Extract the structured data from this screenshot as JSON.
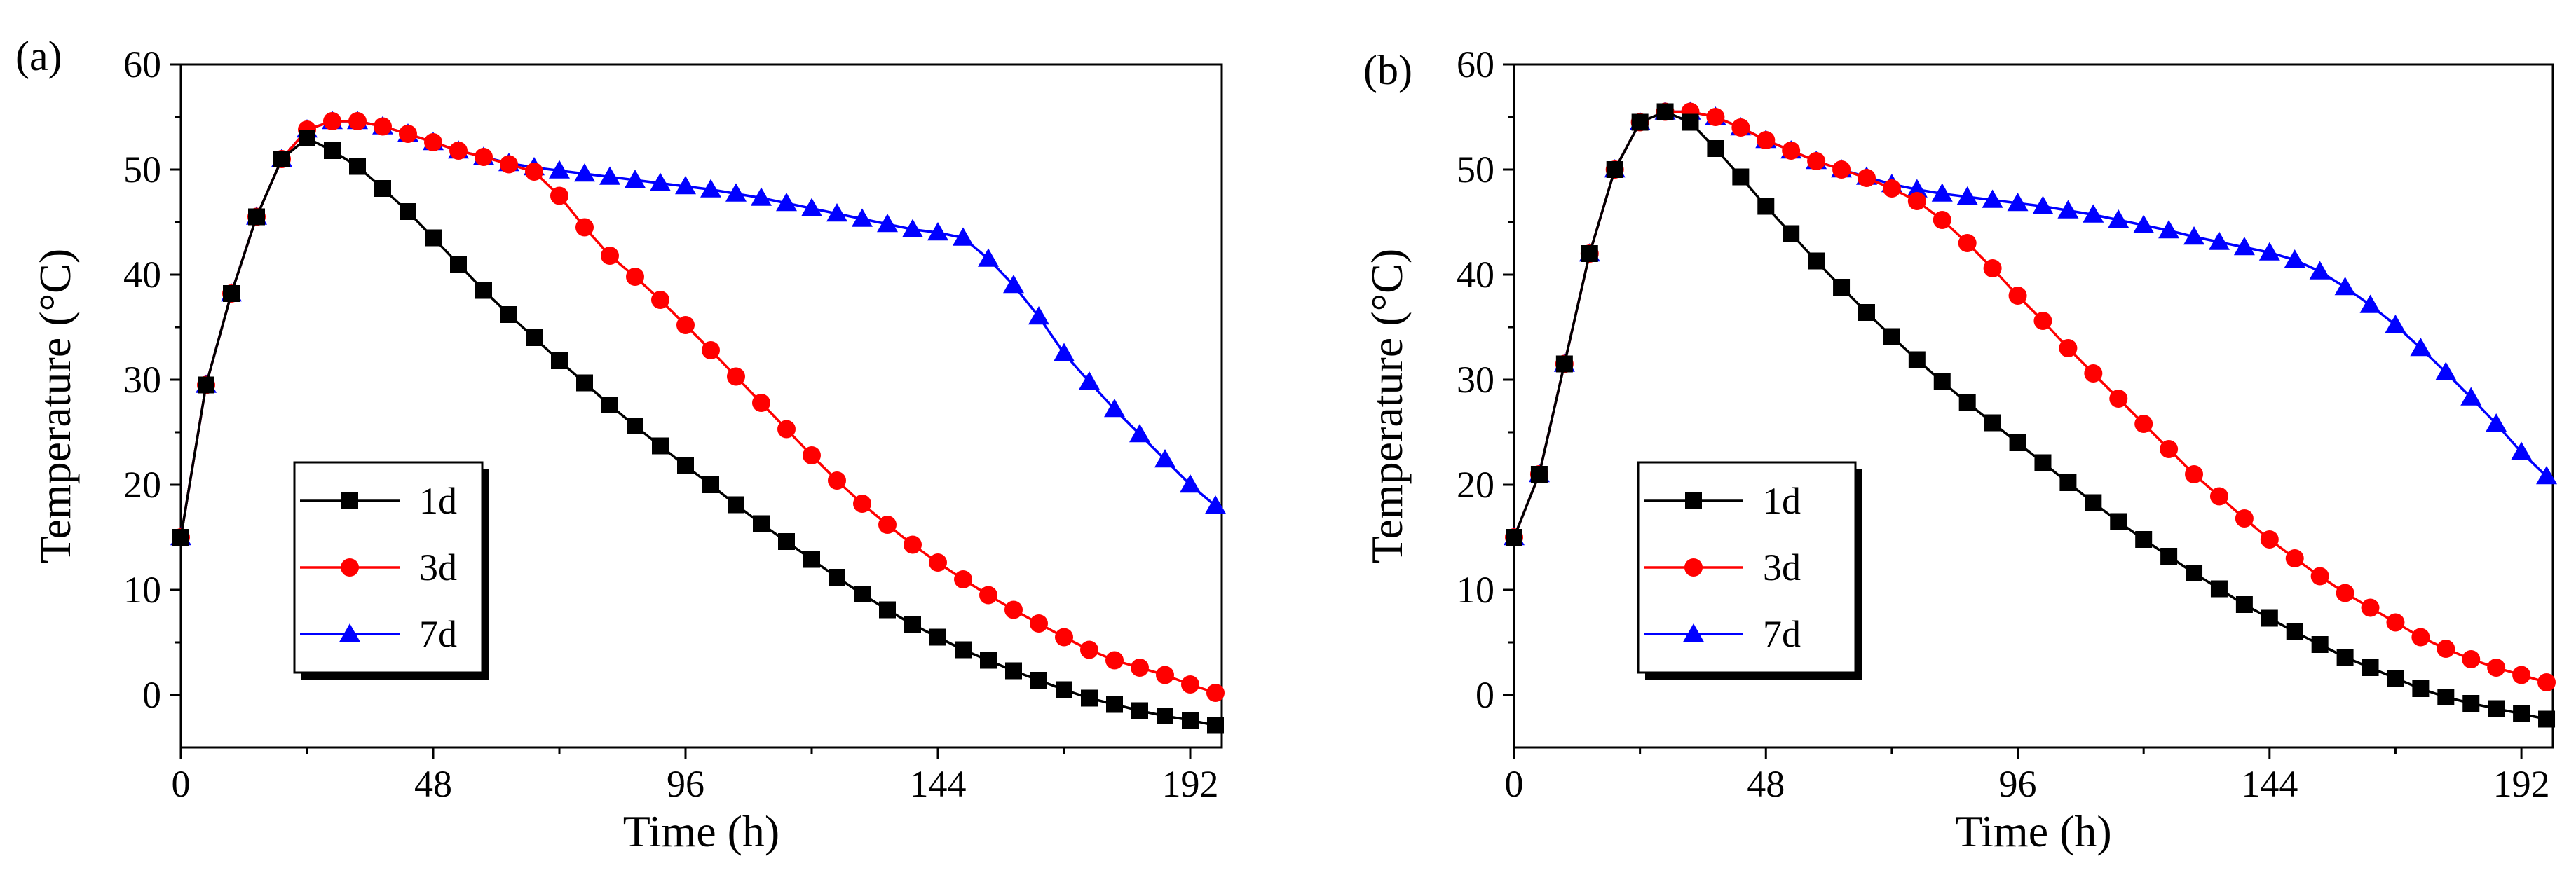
{
  "chart_data": [
    {
      "type": "line",
      "panel_label": "(a)",
      "xlabel": "Time (h)",
      "ylabel": "Temperature (°C)",
      "xlim": [
        0,
        198
      ],
      "ylim": [
        -5,
        60
      ],
      "xticks": [
        0,
        48,
        96,
        144,
        192
      ],
      "yticks": [
        0,
        10,
        20,
        30,
        40,
        50,
        60
      ],
      "legend_position": "lower-left",
      "series": [
        {
          "name": "1d",
          "color": "#000000",
          "marker": "square",
          "x": [
            0,
            4.8,
            9.6,
            14.4,
            19.2,
            24,
            28.8,
            33.6,
            38.4,
            43.2,
            48,
            52.8,
            57.6,
            62.4,
            67.2,
            72,
            76.8,
            81.6,
            86.4,
            91.2,
            96,
            100.8,
            105.6,
            110.4,
            115.2,
            120,
            124.8,
            129.6,
            134.4,
            139.2,
            144,
            148.8,
            153.6,
            158.4,
            163.2,
            168,
            172.8,
            177.6,
            182.4,
            187.2,
            192,
            196.8
          ],
          "y": [
            15,
            29.5,
            38.2,
            45.5,
            51,
            53,
            51.8,
            50.3,
            48.2,
            46,
            43.5,
            41,
            38.5,
            36.2,
            34,
            31.8,
            29.7,
            27.6,
            25.6,
            23.7,
            21.8,
            20,
            18.1,
            16.3,
            14.6,
            12.9,
            11.2,
            9.6,
            8.1,
            6.7,
            5.5,
            4.3,
            3.3,
            2.3,
            1.4,
            0.5,
            -0.3,
            -0.9,
            -1.5,
            -2,
            -2.4,
            -2.9
          ]
        },
        {
          "name": "3d",
          "color": "#ff0000",
          "marker": "circle",
          "x": [
            0,
            4.8,
            9.6,
            14.4,
            19.2,
            24,
            28.8,
            33.6,
            38.4,
            43.2,
            48,
            52.8,
            57.6,
            62.4,
            67.2,
            72,
            76.8,
            81.6,
            86.4,
            91.2,
            96,
            100.8,
            105.6,
            110.4,
            115.2,
            120,
            124.8,
            129.6,
            134.4,
            139.2,
            144,
            148.8,
            153.6,
            158.4,
            163.2,
            168,
            172.8,
            177.6,
            182.4,
            187.2,
            192,
            196.8
          ],
          "y": [
            15,
            29.5,
            38.2,
            45.5,
            51,
            53.8,
            54.6,
            54.6,
            54.1,
            53.4,
            52.6,
            51.8,
            51.2,
            50.5,
            49.8,
            47.5,
            44.5,
            41.8,
            39.8,
            37.6,
            35.2,
            32.8,
            30.3,
            27.8,
            25.3,
            22.8,
            20.4,
            18.2,
            16.2,
            14.3,
            12.6,
            11,
            9.5,
            8.1,
            6.8,
            5.5,
            4.3,
            3.3,
            2.6,
            1.9,
            1,
            0.2
          ]
        },
        {
          "name": "7d",
          "color": "#0000ff",
          "marker": "triangle",
          "x": [
            0,
            4.8,
            9.6,
            14.4,
            19.2,
            24,
            28.8,
            33.6,
            38.4,
            43.2,
            48,
            52.8,
            57.6,
            62.4,
            67.2,
            72,
            76.8,
            81.6,
            86.4,
            91.2,
            96,
            100.8,
            105.6,
            110.4,
            115.2,
            120,
            124.8,
            129.6,
            134.4,
            139.2,
            144,
            148.8,
            153.6,
            158.4,
            163.2,
            168,
            172.8,
            177.6,
            182.4,
            187.2,
            192,
            196.8
          ],
          "y": [
            15,
            29.5,
            38.2,
            45.5,
            51,
            53.8,
            54.6,
            54.6,
            54.1,
            53.4,
            52.6,
            51.8,
            51.2,
            50.6,
            50.2,
            49.9,
            49.6,
            49.3,
            49,
            48.7,
            48.4,
            48.1,
            47.7,
            47.3,
            46.8,
            46.3,
            45.8,
            45.3,
            44.8,
            44.3,
            44,
            43.5,
            41.5,
            39,
            36,
            32.5,
            29.8,
            27.2,
            24.8,
            22.4,
            20,
            18
          ]
        }
      ]
    },
    {
      "type": "line",
      "panel_label": "(b)",
      "xlabel": "Time (h)",
      "ylabel": "Temperature (°C)",
      "xlim": [
        0,
        198
      ],
      "ylim": [
        -5,
        60
      ],
      "xticks": [
        0,
        48,
        96,
        144,
        192
      ],
      "yticks": [
        0,
        10,
        20,
        30,
        40,
        50,
        60
      ],
      "legend_position": "lower-left",
      "series": [
        {
          "name": "1d",
          "color": "#000000",
          "marker": "square",
          "x": [
            0,
            4.8,
            9.6,
            14.4,
            19.2,
            24,
            28.8,
            33.6,
            38.4,
            43.2,
            48,
            52.8,
            57.6,
            62.4,
            67.2,
            72,
            76.8,
            81.6,
            86.4,
            91.2,
            96,
            100.8,
            105.6,
            110.4,
            115.2,
            120,
            124.8,
            129.6,
            134.4,
            139.2,
            144,
            148.8,
            153.6,
            158.4,
            163.2,
            168,
            172.8,
            177.6,
            182.4,
            187.2,
            192,
            196.8
          ],
          "y": [
            15,
            21,
            31.5,
            42,
            50,
            54.5,
            55.5,
            54.5,
            52,
            49.3,
            46.5,
            43.9,
            41.3,
            38.8,
            36.4,
            34.1,
            31.9,
            29.8,
            27.8,
            25.9,
            24,
            22.1,
            20.2,
            18.3,
            16.5,
            14.8,
            13.2,
            11.6,
            10.1,
            8.6,
            7.3,
            6,
            4.8,
            3.6,
            2.6,
            1.6,
            0.6,
            -0.2,
            -0.8,
            -1.3,
            -1.8,
            -2.3
          ]
        },
        {
          "name": "3d",
          "color": "#ff0000",
          "marker": "circle",
          "x": [
            0,
            4.8,
            9.6,
            14.4,
            19.2,
            24,
            28.8,
            33.6,
            38.4,
            43.2,
            48,
            52.8,
            57.6,
            62.4,
            67.2,
            72,
            76.8,
            81.6,
            86.4,
            91.2,
            96,
            100.8,
            105.6,
            110.4,
            115.2,
            120,
            124.8,
            129.6,
            134.4,
            139.2,
            144,
            148.8,
            153.6,
            158.4,
            163.2,
            168,
            172.8,
            177.6,
            182.4,
            187.2,
            192,
            196.8
          ],
          "y": [
            15,
            21,
            31.5,
            42,
            50,
            54.5,
            55.5,
            55.5,
            55,
            54,
            52.8,
            51.8,
            50.8,
            50,
            49.2,
            48.2,
            47,
            45.2,
            43,
            40.6,
            38,
            35.6,
            33,
            30.6,
            28.2,
            25.8,
            23.4,
            21,
            18.9,
            16.8,
            14.8,
            13,
            11.3,
            9.7,
            8.3,
            6.9,
            5.5,
            4.4,
            3.4,
            2.6,
            1.9,
            1.2
          ]
        },
        {
          "name": "7d",
          "color": "#0000ff",
          "marker": "triangle",
          "x": [
            0,
            4.8,
            9.6,
            14.4,
            19.2,
            24,
            28.8,
            33.6,
            38.4,
            43.2,
            48,
            52.8,
            57.6,
            62.4,
            67.2,
            72,
            76.8,
            81.6,
            86.4,
            91.2,
            96,
            100.8,
            105.6,
            110.4,
            115.2,
            120,
            124.8,
            129.6,
            134.4,
            139.2,
            144,
            148.8,
            153.6,
            158.4,
            163.2,
            168,
            172.8,
            177.6,
            182.4,
            187.2,
            192,
            196.8
          ],
          "y": [
            15,
            21,
            31.5,
            42,
            50,
            54.5,
            55.5,
            55.5,
            55,
            54,
            52.8,
            51.8,
            50.8,
            50,
            49.3,
            48.6,
            48.1,
            47.7,
            47.4,
            47.1,
            46.8,
            46.5,
            46.1,
            45.7,
            45.2,
            44.7,
            44.2,
            43.6,
            43.1,
            42.6,
            42.1,
            41.4,
            40.3,
            38.8,
            37.1,
            35.2,
            33,
            30.7,
            28.3,
            25.8,
            23.1,
            20.8
          ]
        }
      ]
    }
  ]
}
